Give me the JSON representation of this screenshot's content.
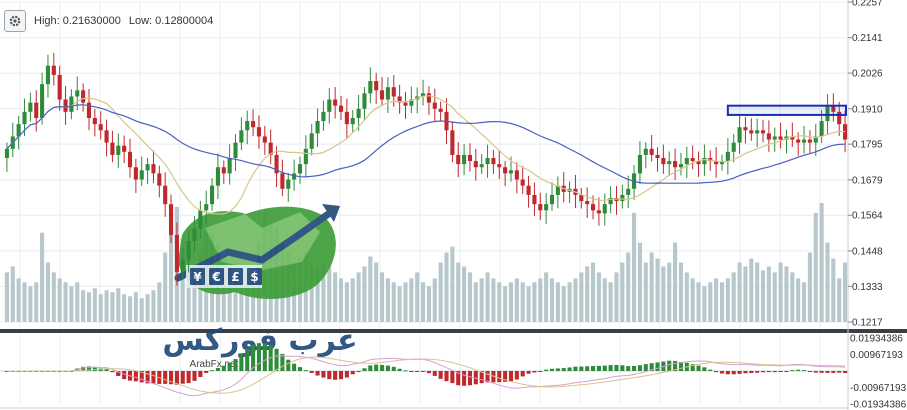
{
  "header": {
    "high_label": "High: 0.21630000",
    "low_label": "Low: 0.12800004"
  },
  "watermark": {
    "brand_ar": "عرب فوركس",
    "brand_url": "ArabFx.net"
  },
  "colors": {
    "up": "#2e8b3a",
    "down": "#c0282d",
    "volume": "#b6c8cc",
    "ma_fast": "#d8c48c",
    "ma_slow": "#4a5fc0",
    "highlight": "#1a2fb0",
    "oscillator_line": "#d6a0d6"
  },
  "chart_data": {
    "type": "candlestick",
    "y_ticks": [
      "0.2257",
      "0.2141",
      "0.2026",
      "0.1910",
      "0.1795",
      "0.1679",
      "0.1564",
      "0.1448",
      "0.1333",
      "0.1217"
    ],
    "ylim": [
      0.1217,
      0.2257
    ],
    "oscillator_ticks": [
      "0.01934386",
      "0.00967193",
      "-0.00967193",
      "-0.01934386"
    ],
    "oscillator_ylim": [
      -0.01934386,
      0.01934386
    ],
    "closes": [
      0.178,
      0.182,
      0.186,
      0.19,
      0.193,
      0.188,
      0.199,
      0.205,
      0.202,
      0.194,
      0.19,
      0.195,
      0.197,
      0.193,
      0.188,
      0.186,
      0.184,
      0.18,
      0.176,
      0.179,
      0.177,
      0.172,
      0.168,
      0.171,
      0.173,
      0.17,
      0.166,
      0.16,
      0.15,
      0.138,
      0.142,
      0.148,
      0.152,
      0.158,
      0.16,
      0.166,
      0.172,
      0.17,
      0.175,
      0.18,
      0.184,
      0.187,
      0.185,
      0.182,
      0.18,
      0.176,
      0.17,
      0.165,
      0.168,
      0.17,
      0.173,
      0.178,
      0.183,
      0.187,
      0.19,
      0.194,
      0.192,
      0.19,
      0.186,
      0.188,
      0.191,
      0.196,
      0.2,
      0.197,
      0.194,
      0.198,
      0.195,
      0.193,
      0.192,
      0.194,
      0.195,
      0.196,
      0.193,
      0.191,
      0.19,
      0.184,
      0.176,
      0.173,
      0.176,
      0.174,
      0.172,
      0.173,
      0.175,
      0.173,
      0.172,
      0.17,
      0.171,
      0.168,
      0.166,
      0.163,
      0.16,
      0.158,
      0.16,
      0.163,
      0.166,
      0.164,
      0.165,
      0.163,
      0.161,
      0.16,
      0.158,
      0.157,
      0.16,
      0.162,
      0.161,
      0.163,
      0.165,
      0.17,
      0.176,
      0.178,
      0.176,
      0.175,
      0.173,
      0.174,
      0.172,
      0.173,
      0.175,
      0.174,
      0.173,
      0.175,
      0.174,
      0.173,
      0.174,
      0.177,
      0.18,
      0.185,
      0.184,
      0.183,
      0.184,
      0.183,
      0.181,
      0.182,
      0.181,
      0.182,
      0.181,
      0.18,
      0.181,
      0.18,
      0.182,
      0.187,
      0.192,
      0.19,
      0.186,
      0.181
    ],
    "volumes": [
      0.25,
      0.28,
      0.22,
      0.2,
      0.18,
      0.2,
      0.45,
      0.3,
      0.25,
      0.22,
      0.2,
      0.18,
      0.2,
      0.16,
      0.15,
      0.17,
      0.14,
      0.16,
      0.15,
      0.17,
      0.14,
      0.13,
      0.15,
      0.12,
      0.14,
      0.16,
      0.2,
      0.35,
      0.48,
      0.58,
      0.42,
      0.32,
      0.28,
      0.35,
      0.5,
      0.45,
      0.4,
      0.32,
      0.28,
      0.25,
      0.22,
      0.2,
      0.25,
      0.4,
      0.55,
      0.5,
      0.48,
      0.4,
      0.35,
      0.3,
      0.32,
      0.35,
      0.3,
      0.28,
      0.3,
      0.28,
      0.25,
      0.22,
      0.2,
      0.22,
      0.25,
      0.28,
      0.33,
      0.3,
      0.25,
      0.22,
      0.2,
      0.18,
      0.2,
      0.22,
      0.25,
      0.2,
      0.18,
      0.22,
      0.3,
      0.35,
      0.38,
      0.3,
      0.28,
      0.25,
      0.2,
      0.22,
      0.25,
      0.22,
      0.2,
      0.18,
      0.2,
      0.22,
      0.2,
      0.18,
      0.2,
      0.22,
      0.25,
      0.22,
      0.2,
      0.18,
      0.2,
      0.22,
      0.25,
      0.28,
      0.3,
      0.25,
      0.22,
      0.2,
      0.25,
      0.3,
      0.35,
      0.55,
      0.4,
      0.3,
      0.35,
      0.32,
      0.28,
      0.3,
      0.4,
      0.3,
      0.25,
      0.22,
      0.2,
      0.18,
      0.2,
      0.22,
      0.2,
      0.22,
      0.25,
      0.3,
      0.28,
      0.32,
      0.3,
      0.26,
      0.28,
      0.25,
      0.3,
      0.28,
      0.25,
      0.22,
      0.2,
      0.35,
      0.55,
      0.6,
      0.4,
      0.32,
      0.22,
      0.3
    ]
  }
}
